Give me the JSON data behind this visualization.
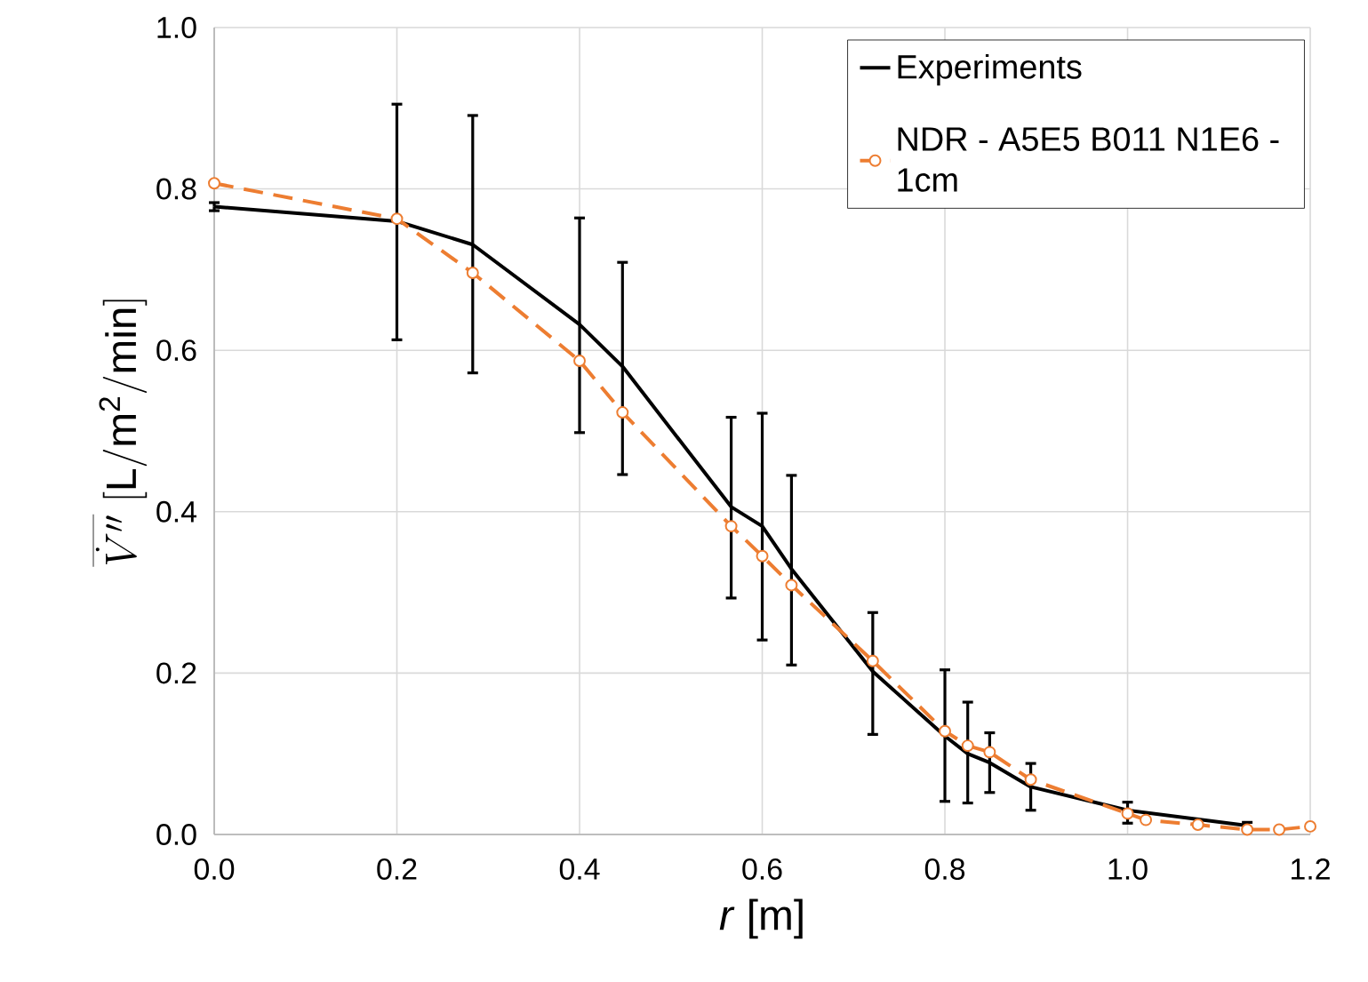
{
  "chart_data": {
    "type": "line",
    "xlabel": "*r* [m]",
    "ylabel": "\\overline{\\dot{V}''}\\ \\mathrm{[L/m^2/min]}",
    "xlim": [
      0,
      1.2
    ],
    "ylim": [
      0,
      1.0
    ],
    "xticks": [
      {
        "value": 0,
        "label": "0.0"
      },
      0.2,
      0.4,
      0.6,
      0.8,
      {
        "value": 1,
        "label": "1.0"
      },
      1.2
    ],
    "yticks": [
      {
        "value": 0,
        "label": "0.0"
      },
      0.2,
      0.4,
      0.6,
      0.8,
      {
        "value": 1,
        "label": "1.0"
      }
    ],
    "grid": true,
    "legend": "top right",
    "series": [
      {
        "name": "Experiments",
        "color": "#000000",
        "marker": "none",
        "line_style": "solid",
        "x": [
          0,
          0.2,
          0.283,
          0.4,
          0.447,
          0.566,
          0.6,
          0.632,
          0.721,
          0.8,
          0.825,
          0.849,
          0.894,
          1.0,
          1.131
        ],
        "values": [
          0.778,
          0.76,
          0.731,
          0.632,
          0.58,
          0.406,
          0.382,
          0.329,
          0.202,
          0.122,
          0.1,
          0.089,
          0.059,
          0.03,
          0.011
        ],
        "errors": [
          [
            0.773,
            0.783
          ],
          [
            0.613,
            0.905
          ],
          [
            0.572,
            0.891
          ],
          [
            0.498,
            0.764
          ],
          [
            0.446,
            0.709
          ],
          [
            0.293,
            0.517
          ],
          [
            0.241,
            0.522
          ],
          [
            0.21,
            0.445
          ],
          [
            0.124,
            0.275
          ],
          [
            0.041,
            0.204
          ],
          [
            0.039,
            0.164
          ],
          [
            0.052,
            0.126
          ],
          [
            0.03,
            0.088
          ],
          [
            0.014,
            0.04
          ],
          [
            0.007,
            0.015
          ]
        ]
      },
      {
        "name": "NDR - A5E5 B011 N1E6 - 1cm",
        "color": "#ed7d31",
        "marker": "circle",
        "line_style": "dashed",
        "x": [
          0,
          0.2,
          0.283,
          0.4,
          0.447,
          0.566,
          0.6,
          0.632,
          0.721,
          0.8,
          0.825,
          0.849,
          0.894,
          1.0,
          1.02,
          1.077,
          1.131,
          1.166,
          1.2
        ],
        "values": [
          0.807,
          0.763,
          0.696,
          0.587,
          0.523,
          0.382,
          0.345,
          0.309,
          0.215,
          0.128,
          0.11,
          0.102,
          0.068,
          0.026,
          0.018,
          0.012,
          0.006,
          0.006,
          0.01
        ]
      }
    ]
  }
}
